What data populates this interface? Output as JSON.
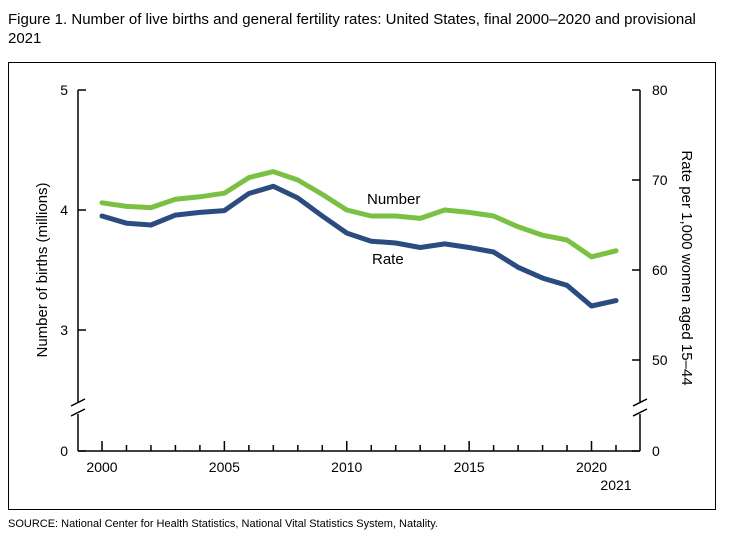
{
  "figure": {
    "title": "Figure 1. Number of live births and general fertility rates: United States, final 2000–2020 and provisional 2021",
    "source": "SOURCE: National Center for Health Statistics, National Vital Statistics System, Natality."
  },
  "chart_data": {
    "type": "line",
    "x": [
      2000,
      2001,
      2002,
      2003,
      2004,
      2005,
      2006,
      2007,
      2008,
      2009,
      2010,
      2011,
      2012,
      2013,
      2014,
      2015,
      2016,
      2017,
      2018,
      2019,
      2020,
      2021
    ],
    "series": [
      {
        "name": "Number",
        "axis": "left",
        "color": "#7ac143",
        "values": [
          4.06,
          4.03,
          4.02,
          4.09,
          4.11,
          4.14,
          4.27,
          4.32,
          4.25,
          4.13,
          4.0,
          3.95,
          3.95,
          3.93,
          4.0,
          3.98,
          3.95,
          3.86,
          3.79,
          3.75,
          3.61,
          3.66
        ]
      },
      {
        "name": "Rate",
        "axis": "right",
        "color": "#2b4c7e",
        "values": [
          66.0,
          65.2,
          65.0,
          66.1,
          66.4,
          66.6,
          68.5,
          69.3,
          68.0,
          66.0,
          64.1,
          63.2,
          63.0,
          62.5,
          62.9,
          62.5,
          62.0,
          60.3,
          59.1,
          58.3,
          56.0,
          56.6
        ]
      }
    ],
    "series_labels": {
      "number": "Number",
      "rate": "Rate"
    },
    "left_axis": {
      "title": "Number of births (millions)",
      "ticks": [
        3,
        4,
        5
      ],
      "break_label": "0",
      "range": [
        2.55,
        5
      ]
    },
    "right_axis": {
      "title": "Rate per 1,000 women aged 15–44",
      "ticks": [
        50,
        60,
        70,
        80
      ],
      "break_label": "0",
      "range": [
        42.5,
        80
      ]
    },
    "x_axis": {
      "ticks": [
        "2000",
        "2005",
        "2010",
        "2015",
        "2020"
      ],
      "last_label": "2021",
      "range": [
        2000,
        2021
      ]
    }
  }
}
